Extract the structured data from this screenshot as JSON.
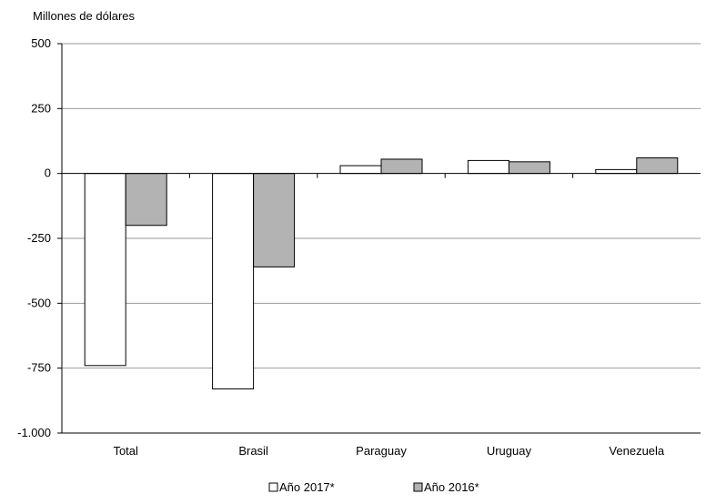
{
  "chart_data": {
    "type": "bar",
    "title": "",
    "xlabel": "",
    "ylabel": "Millones de dólares",
    "categories": [
      "Total",
      "Brasil",
      "Paraguay",
      "Uruguay",
      "Venezuela"
    ],
    "series": [
      {
        "name": "Año 2017*",
        "values": [
          -740,
          -830,
          30,
          50,
          15
        ],
        "color": "#ffffff"
      },
      {
        "name": "Año 2016*",
        "values": [
          -200,
          -360,
          55,
          45,
          60
        ],
        "color": "#b3b3b3"
      }
    ],
    "ylim": [
      -1000,
      500
    ],
    "yticks": [
      500,
      250,
      0,
      -250,
      -500,
      -750,
      -1000
    ],
    "ytick_labels": [
      "500",
      "250",
      "0",
      "-250",
      "-500",
      "-750",
      "-1.000"
    ],
    "grid": true,
    "legend_position": "bottom-center"
  }
}
